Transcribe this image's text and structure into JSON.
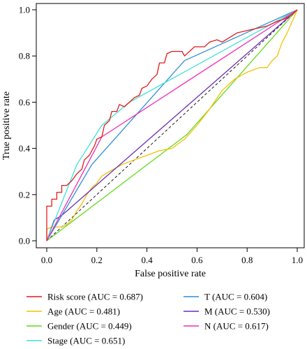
{
  "chart_data": {
    "type": "line",
    "title": "",
    "xlabel": "False positive rate",
    "ylabel": "True positive rate",
    "xlim": [
      0,
      1
    ],
    "ylim": [
      0,
      1
    ],
    "x_ticks": [
      "0.0",
      "0.2",
      "0.4",
      "0.6",
      "0.8",
      "1.0"
    ],
    "y_ticks": [
      "0.0",
      "0.2",
      "0.4",
      "0.6",
      "0.8",
      "1.0"
    ],
    "grid": false,
    "legend_position": "bottom",
    "reference_line": {
      "style": "dashed",
      "color": "#000000",
      "points": [
        [
          0,
          0
        ],
        [
          1,
          1
        ]
      ]
    },
    "series": [
      {
        "name": "Risk score (AUC = 0.687)",
        "color": "#e41a1c",
        "points": [
          [
            0,
            0
          ],
          [
            0,
            0.15
          ],
          [
            0.02,
            0.15
          ],
          [
            0.02,
            0.18
          ],
          [
            0.04,
            0.18
          ],
          [
            0.04,
            0.21
          ],
          [
            0.06,
            0.21
          ],
          [
            0.06,
            0.24
          ],
          [
            0.08,
            0.24
          ],
          [
            0.1,
            0.26
          ],
          [
            0.12,
            0.29
          ],
          [
            0.14,
            0.31
          ],
          [
            0.15,
            0.35
          ],
          [
            0.17,
            0.37
          ],
          [
            0.19,
            0.41
          ],
          [
            0.2,
            0.44
          ],
          [
            0.22,
            0.45
          ],
          [
            0.23,
            0.5
          ],
          [
            0.25,
            0.52
          ],
          [
            0.26,
            0.56
          ],
          [
            0.28,
            0.56
          ],
          [
            0.29,
            0.59
          ],
          [
            0.31,
            0.58
          ],
          [
            0.33,
            0.6
          ],
          [
            0.35,
            0.62
          ],
          [
            0.37,
            0.63
          ],
          [
            0.38,
            0.66
          ],
          [
            0.4,
            0.67
          ],
          [
            0.42,
            0.7
          ],
          [
            0.44,
            0.72
          ],
          [
            0.45,
            0.77
          ],
          [
            0.47,
            0.77
          ],
          [
            0.48,
            0.81
          ],
          [
            0.5,
            0.82
          ],
          [
            0.52,
            0.82
          ],
          [
            0.54,
            0.82
          ],
          [
            0.55,
            0.8
          ],
          [
            0.57,
            0.82
          ],
          [
            0.59,
            0.84
          ],
          [
            0.61,
            0.84
          ],
          [
            0.63,
            0.84
          ],
          [
            0.65,
            0.86
          ],
          [
            0.68,
            0.87
          ],
          [
            0.7,
            0.86
          ],
          [
            0.73,
            0.88
          ],
          [
            0.76,
            0.9
          ],
          [
            0.8,
            0.91
          ],
          [
            0.84,
            0.92
          ],
          [
            0.88,
            0.93
          ],
          [
            0.92,
            0.95
          ],
          [
            0.95,
            0.96
          ],
          [
            0.98,
            0.98
          ],
          [
            1,
            1
          ]
        ]
      },
      {
        "name": "Age (AUC = 0.481)",
        "color": "#f2c100",
        "points": [
          [
            0,
            0
          ],
          [
            0,
            0.05
          ],
          [
            0.02,
            0.06
          ],
          [
            0.04,
            0.06
          ],
          [
            0.06,
            0.06
          ],
          [
            0.08,
            0.07
          ],
          [
            0.1,
            0.09
          ],
          [
            0.12,
            0.13
          ],
          [
            0.14,
            0.16
          ],
          [
            0.16,
            0.2
          ],
          [
            0.18,
            0.23
          ],
          [
            0.2,
            0.25
          ],
          [
            0.22,
            0.28
          ],
          [
            0.25,
            0.3
          ],
          [
            0.3,
            0.33
          ],
          [
            0.35,
            0.35
          ],
          [
            0.4,
            0.37
          ],
          [
            0.45,
            0.39
          ],
          [
            0.5,
            0.4
          ],
          [
            0.55,
            0.44
          ],
          [
            0.6,
            0.5
          ],
          [
            0.65,
            0.57
          ],
          [
            0.7,
            0.65
          ],
          [
            0.75,
            0.7
          ],
          [
            0.8,
            0.73
          ],
          [
            0.85,
            0.75
          ],
          [
            0.88,
            0.75
          ],
          [
            0.9,
            0.78
          ],
          [
            0.92,
            0.8
          ],
          [
            0.94,
            0.86
          ],
          [
            0.96,
            0.9
          ],
          [
            0.98,
            0.95
          ],
          [
            1,
            1
          ]
        ]
      },
      {
        "name": "Gender (AUC = 0.449)",
        "color": "#66d91c",
        "points": [
          [
            0,
            0
          ],
          [
            0.56,
            0.46
          ],
          [
            1,
            1
          ]
        ]
      },
      {
        "name": "Stage (AUC = 0.651)",
        "color": "#3ee2d5",
        "points": [
          [
            0,
            0
          ],
          [
            0.12,
            0.33
          ],
          [
            0.22,
            0.5
          ],
          [
            0.33,
            0.6
          ],
          [
            1,
            1
          ]
        ]
      },
      {
        "name": "T (AUC = 0.604)",
        "color": "#2f8ed6",
        "points": [
          [
            0,
            0
          ],
          [
            0.18,
            0.33
          ],
          [
            0.55,
            0.78
          ],
          [
            1,
            1
          ]
        ]
      },
      {
        "name": "M (AUC = 0.530)",
        "color": "#6a2fb5",
        "points": [
          [
            0,
            0
          ],
          [
            0.03,
            0.09
          ],
          [
            0.06,
            0.11
          ],
          [
            1,
            1
          ]
        ]
      },
      {
        "name": "N (AUC = 0.617)",
        "color": "#f02ab5",
        "points": [
          [
            0,
            0
          ],
          [
            0.22,
            0.45
          ],
          [
            1,
            1
          ]
        ]
      }
    ]
  }
}
